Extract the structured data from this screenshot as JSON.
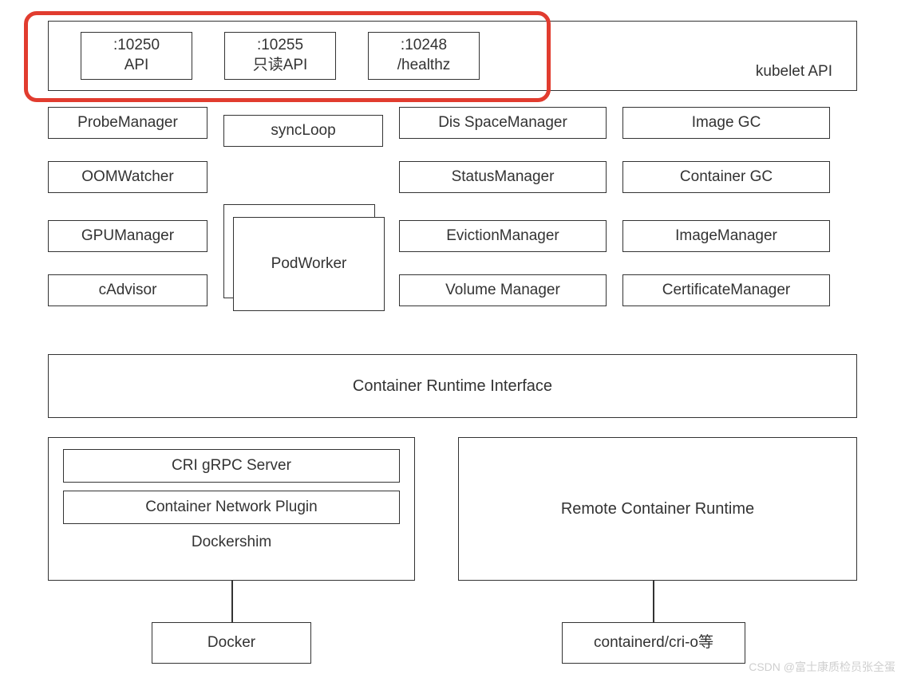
{
  "diagram": {
    "type": "flowchart",
    "background_color": "#ffffff",
    "border_color": "#333333",
    "text_color": "#333333",
    "highlight_color": "#e13c2f",
    "font_family": "Arial",
    "label_fontsize": 19
  },
  "api_row": {
    "label": "kubelet API",
    "ports": [
      {
        "line1": ":10250",
        "line2": "API"
      },
      {
        "line1": ":10255",
        "line2": "只读API"
      },
      {
        "line1": ":10248",
        "line2": "/healthz"
      }
    ]
  },
  "managers": {
    "col1": [
      "ProbeManager",
      "OOMWatcher",
      "GPUManager",
      "cAdvisor"
    ],
    "col2_top": "syncLoop",
    "col2_stack": "PodWorker",
    "col3": [
      "Dis  SpaceManager",
      "StatusManager",
      "EvictionManager",
      "Volume Manager"
    ],
    "col4": [
      "Image GC",
      "Container GC",
      "ImageManager",
      "CertificateManager"
    ]
  },
  "cri_row": "Container Runtime Interface",
  "bottom": {
    "left_inner": [
      "CRI gRPC Server",
      "Container Network Plugin"
    ],
    "left_label": "Dockershim",
    "right_label": "Remote Container Runtime",
    "docker": "Docker",
    "containerd": "containerd/cri-o等"
  },
  "watermark": "CSDN @富士康质检员张全蛋"
}
